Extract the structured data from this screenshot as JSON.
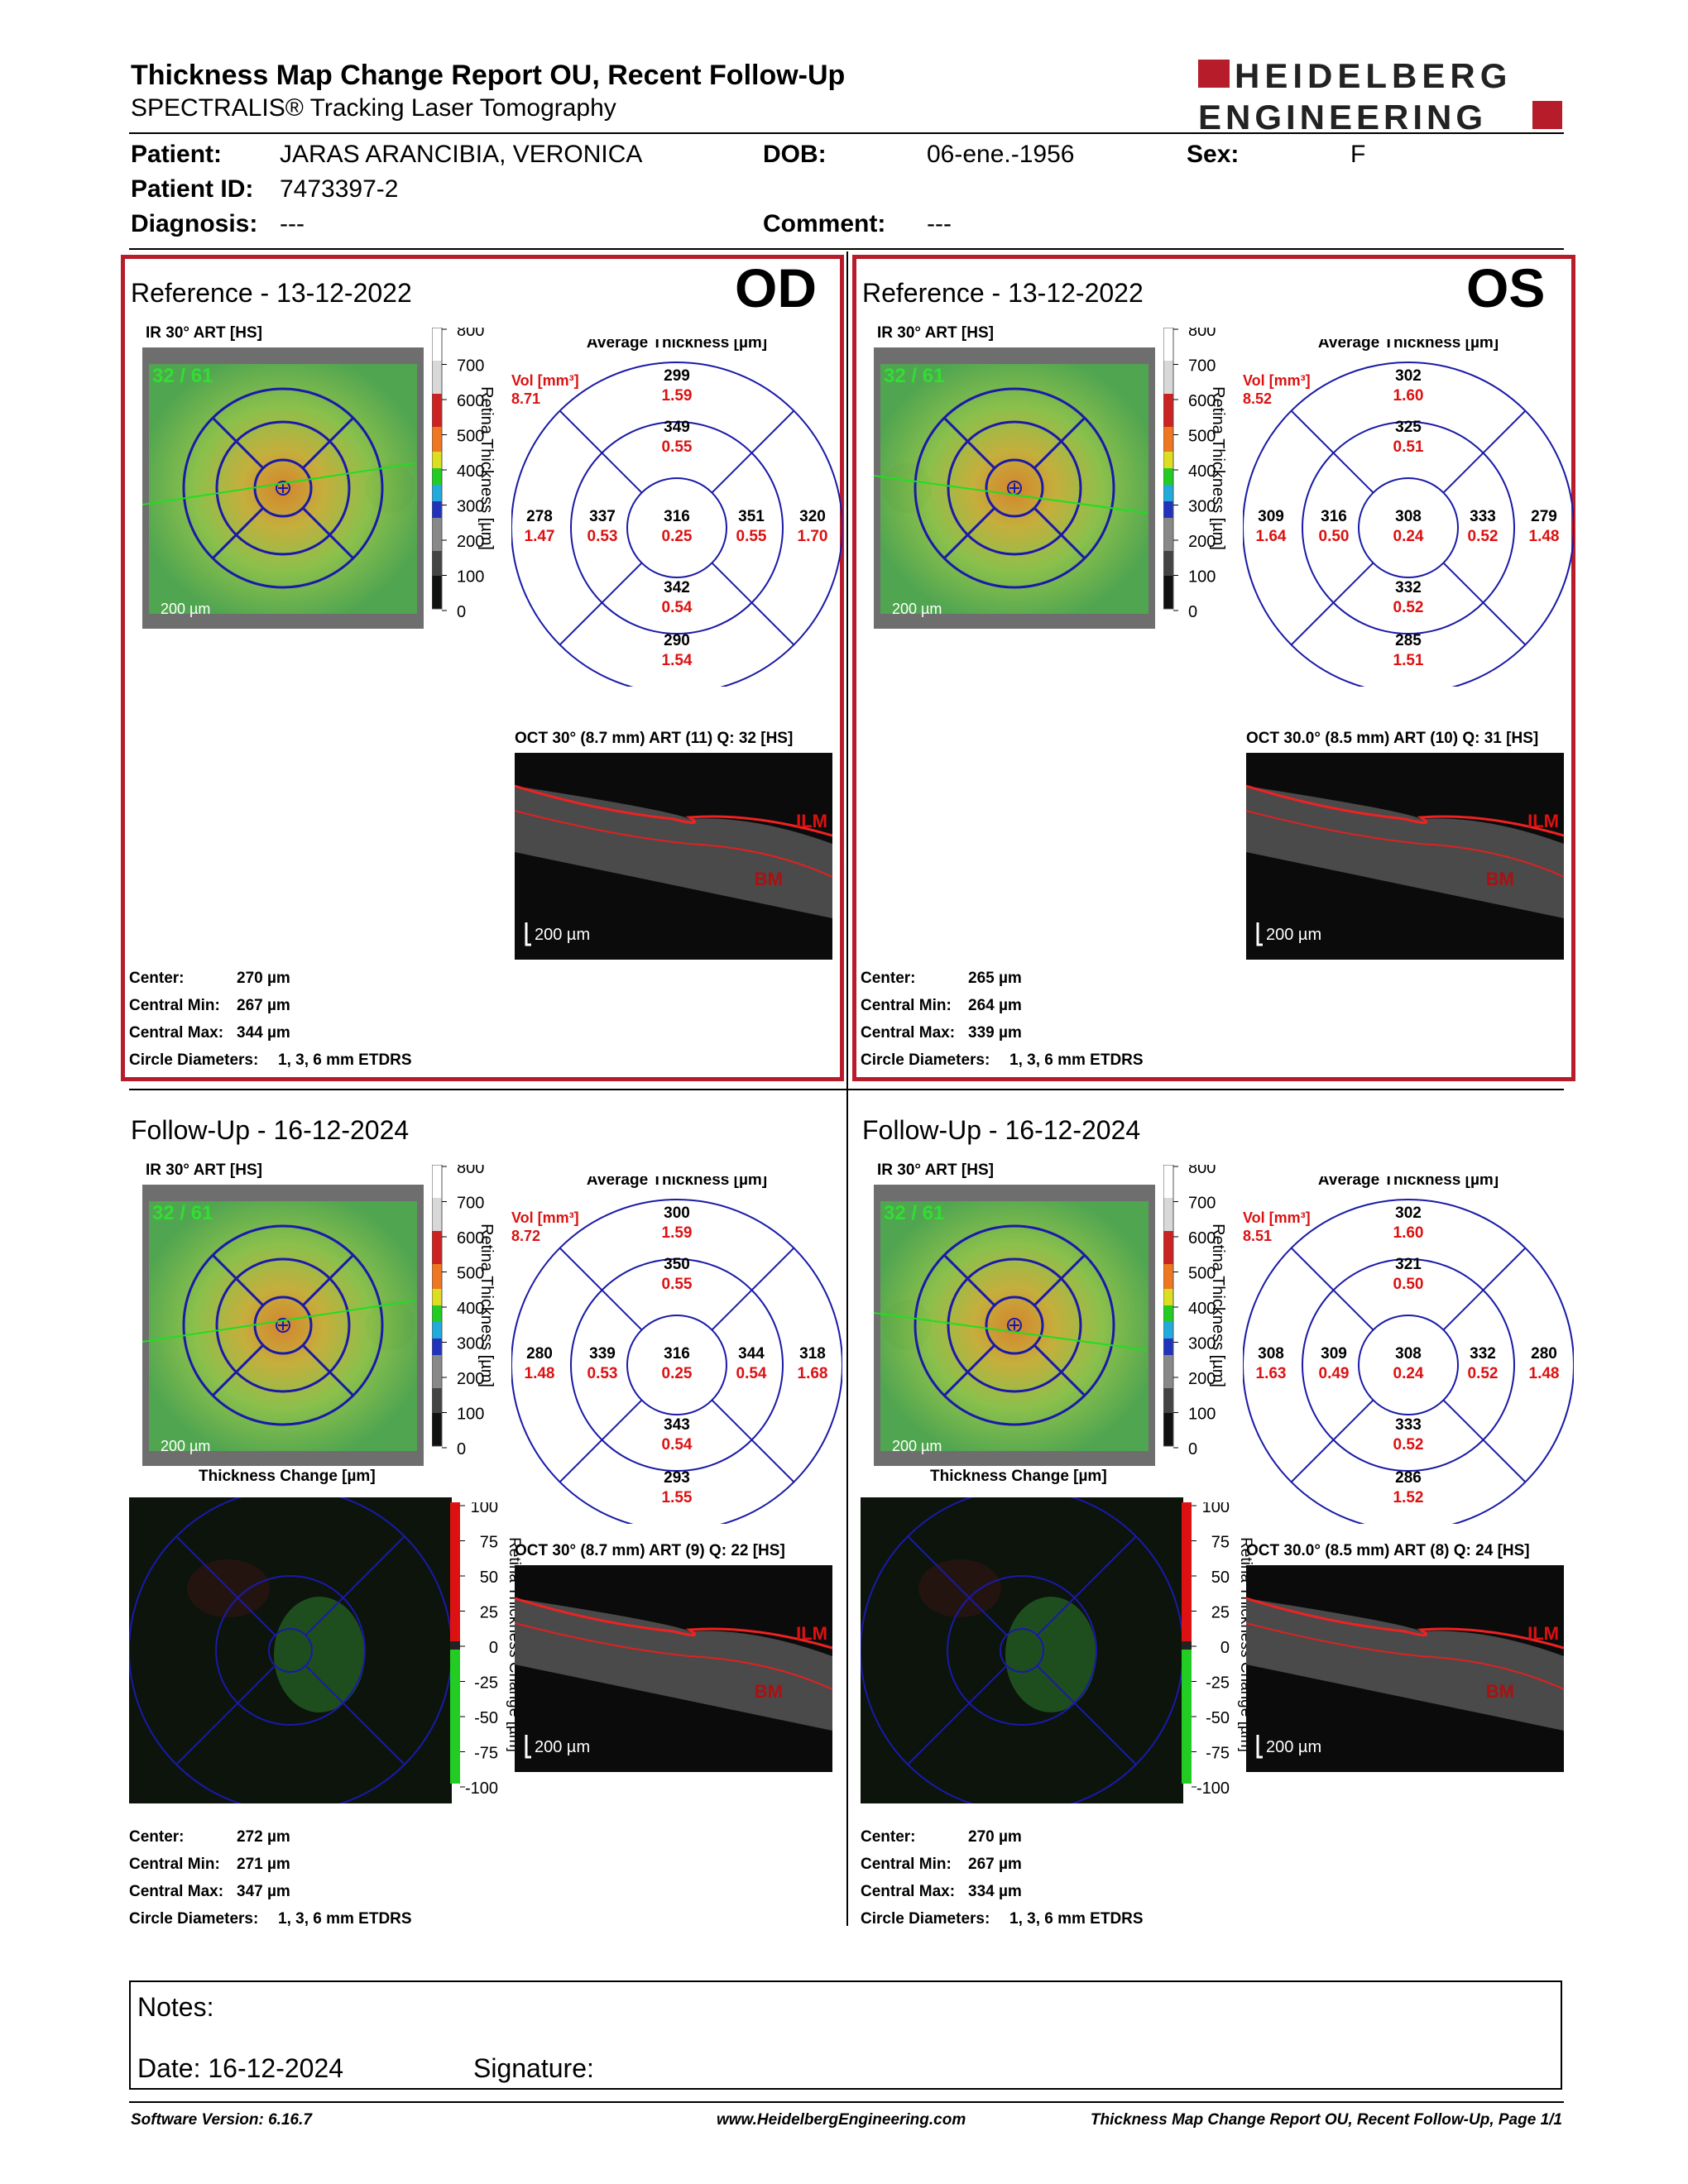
{
  "header": {
    "title": "Thickness Map Change Report OU, Recent Follow-Up",
    "subtitle": "SPECTRALIS® Tracking Laser Tomography",
    "logo_line1": "HEIDELBERG",
    "logo_line2": "ENGINEERING"
  },
  "patient": {
    "patient_label": "Patient:",
    "patient_value": "JARAS ARANCIBIA, VERONICA",
    "dob_label": "DOB:",
    "dob_value": "06-ene.-1956",
    "sex_label": "Sex:",
    "sex_value": "F",
    "id_label": "Patient ID:",
    "id_value": "7473397-2",
    "diagnosis_label": "Diagnosis:",
    "diagnosis_value": "---",
    "comment_label": "Comment:",
    "comment_value": "---"
  },
  "labels": {
    "ir": "IR 30° ART [HS]",
    "avg": "Average Thickness [µm]",
    "vol": "Vol [mm³]",
    "scale_um": "200 µm",
    "retina_thickness": "Retina Thickness [µm]",
    "thickness_change": "Thickness Change [µm]",
    "retina_thickness_change": "Retina Thickness Change [µm]",
    "ilm": "ILM",
    "bm": "BM",
    "center": "Center:",
    "central_min": "Central Min:",
    "central_max": "Central Max:",
    "circle_diam": "Circle Diameters:",
    "circle_val": "1, 3, 6 mm ETDRS",
    "tick_labels": [
      "800",
      "700",
      "600",
      "500",
      "400",
      "300",
      "200",
      "100",
      "0"
    ],
    "change_ticks": [
      "100",
      "75",
      "50",
      "25",
      "0",
      "-25",
      "-50",
      "-75",
      "-100"
    ]
  },
  "panels": {
    "od_ref": {
      "title": "Reference - 13-12-2022",
      "eye": "OD",
      "fixation": "32 / 61",
      "vol": "8.71",
      "oct": "OCT 30° (8.7 mm) ART (11) Q: 32 [HS]",
      "center": "270 µm",
      "cmin": "267 µm",
      "cmax": "344 µm",
      "sectors": {
        "outer_top": [
          "299",
          "1.59"
        ],
        "inner_top": [
          "349",
          "0.55"
        ],
        "outer_left": [
          "278",
          "1.47"
        ],
        "inner_left": [
          "337",
          "0.53"
        ],
        "center": [
          "316",
          "0.25"
        ],
        "inner_right": [
          "351",
          "0.55"
        ],
        "outer_right": [
          "320",
          "1.70"
        ],
        "inner_bottom": [
          "342",
          "0.54"
        ],
        "outer_bottom": [
          "290",
          "1.54"
        ]
      }
    },
    "os_ref": {
      "title": "Reference - 13-12-2022",
      "eye": "OS",
      "fixation": "32 / 61",
      "vol": "8.52",
      "oct": "OCT 30.0° (8.5 mm) ART (10) Q: 31 [HS]",
      "center": "265 µm",
      "cmin": "264 µm",
      "cmax": "339 µm",
      "sectors": {
        "outer_top": [
          "302",
          "1.60"
        ],
        "inner_top": [
          "325",
          "0.51"
        ],
        "outer_left": [
          "309",
          "1.64"
        ],
        "inner_left": [
          "316",
          "0.50"
        ],
        "center": [
          "308",
          "0.24"
        ],
        "inner_right": [
          "333",
          "0.52"
        ],
        "outer_right": [
          "279",
          "1.48"
        ],
        "inner_bottom": [
          "332",
          "0.52"
        ],
        "outer_bottom": [
          "285",
          "1.51"
        ]
      }
    },
    "od_fu": {
      "title": "Follow-Up - 16-12-2024",
      "fixation": "32 / 61",
      "vol": "8.72",
      "oct": "OCT 30° (8.7 mm) ART (9) Q: 22 [HS]",
      "center": "272 µm",
      "cmin": "271 µm",
      "cmax": "347 µm",
      "sectors": {
        "outer_top": [
          "300",
          "1.59"
        ],
        "inner_top": [
          "350",
          "0.55"
        ],
        "outer_left": [
          "280",
          "1.48"
        ],
        "inner_left": [
          "339",
          "0.53"
        ],
        "center": [
          "316",
          "0.25"
        ],
        "inner_right": [
          "344",
          "0.54"
        ],
        "outer_right": [
          "318",
          "1.68"
        ],
        "inner_bottom": [
          "343",
          "0.54"
        ],
        "outer_bottom": [
          "293",
          "1.55"
        ]
      }
    },
    "os_fu": {
      "title": "Follow-Up - 16-12-2024",
      "fixation": "32 / 61",
      "vol": "8.51",
      "oct": "OCT 30.0° (8.5 mm) ART (8) Q: 24 [HS]",
      "center": "270 µm",
      "cmin": "267 µm",
      "cmax": "334 µm",
      "sectors": {
        "outer_top": [
          "302",
          "1.60"
        ],
        "inner_top": [
          "321",
          "0.50"
        ],
        "outer_left": [
          "308",
          "1.63"
        ],
        "inner_left": [
          "309",
          "0.49"
        ],
        "center": [
          "308",
          "0.24"
        ],
        "inner_right": [
          "332",
          "0.52"
        ],
        "outer_right": [
          "280",
          "1.48"
        ],
        "inner_bottom": [
          "333",
          "0.52"
        ],
        "outer_bottom": [
          "286",
          "1.52"
        ]
      }
    }
  },
  "notes": {
    "notes_label": "Notes:",
    "date_label": "Date: 16-12-2024",
    "signature_label": "Signature:"
  },
  "footer": {
    "software": "Software Version: 6.16.7",
    "url": "www.HeidelbergEngineering.com",
    "page": "Thickness Map Change Report OU, Recent Follow-Up, Page 1/1"
  },
  "colors": {
    "accent": "#b71c2a",
    "value_red": "#dd1111",
    "grid_blue": "#1a1aa8"
  }
}
